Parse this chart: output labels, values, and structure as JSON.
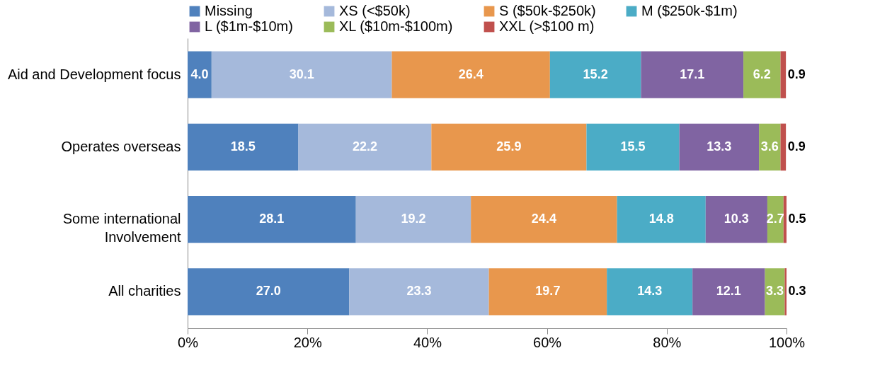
{
  "chart_data": {
    "type": "bar",
    "orientation": "horizontal",
    "stacked": true,
    "legend": "top",
    "grid": false,
    "categories": [
      "Aid and Development focus",
      "Operates overseas",
      "Some international Involvement",
      "All charities"
    ],
    "xlim": [
      0,
      100
    ],
    "xticks": [
      {
        "value": 0,
        "label": "0%"
      },
      {
        "value": 20,
        "label": "20%"
      },
      {
        "value": 40,
        "label": "40%"
      },
      {
        "value": 60,
        "label": "60%"
      },
      {
        "value": 80,
        "label": "80%"
      },
      {
        "value": 100,
        "label": "100%"
      }
    ],
    "series": [
      {
        "name": "Missing",
        "color": "#4f81bd",
        "values": [
          4.0,
          18.5,
          28.1,
          27.0
        ],
        "value_labels": [
          "4.0",
          "18.5",
          "28.1",
          "27.0"
        ]
      },
      {
        "name": "XS (<$50k)",
        "color": "#a5b9db",
        "values": [
          30.1,
          22.2,
          19.2,
          23.3
        ],
        "value_labels": [
          "30.1",
          "22.2",
          "19.2",
          "23.3"
        ]
      },
      {
        "name": "S ($50k-$250k)",
        "color": "#e8974d",
        "values": [
          26.4,
          25.9,
          24.4,
          19.7
        ],
        "value_labels": [
          "26.4",
          "25.9",
          "24.4",
          "19.7"
        ]
      },
      {
        "name": "M ($250k-$1m)",
        "color": "#4bacc6",
        "values": [
          15.2,
          15.5,
          14.8,
          14.3
        ],
        "value_labels": [
          "15.2",
          "15.5",
          "14.8",
          "14.3"
        ]
      },
      {
        "name": "L ($1m-$10m)",
        "color": "#8064a2",
        "values": [
          17.1,
          13.3,
          10.3,
          12.1
        ],
        "value_labels": [
          "17.1",
          "13.3",
          "10.3",
          "12.1"
        ]
      },
      {
        "name": "XL ($10m-$100m)",
        "color": "#9bbb59",
        "values": [
          6.2,
          3.6,
          2.7,
          3.3
        ],
        "value_labels": [
          "6.2",
          "3.6",
          "2.7",
          "3.3"
        ]
      },
      {
        "name": "XXL (>$100 m)",
        "color": "#c0504d",
        "values": [
          0.9,
          0.9,
          0.5,
          0.3
        ],
        "value_labels": [
          "0.9",
          "0.9",
          "0.5",
          "0.3"
        ]
      }
    ]
  }
}
